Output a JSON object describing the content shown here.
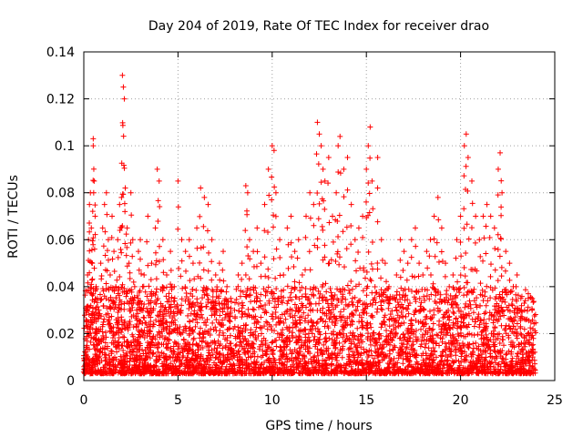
{
  "chart_data": {
    "type": "scatter",
    "title": "Day 204 of 2019, Rate Of TEC Index for receiver drao",
    "xlabel": "GPS time / hours",
    "ylabel": "ROTI / TECUs",
    "xlim": [
      0,
      25
    ],
    "ylim": [
      0,
      0.14
    ],
    "xticks": [
      0,
      5,
      10,
      15,
      20,
      25
    ],
    "yticks": [
      0,
      0.02,
      0.04,
      0.06,
      0.08,
      0.1,
      0.12,
      0.14
    ],
    "xtick_labels": [
      "0",
      "5",
      "10",
      "15",
      "20",
      "25"
    ],
    "ytick_labels": [
      "0",
      "0.02",
      "0.04",
      "0.06",
      "0.08",
      "0.1",
      "0.12",
      "0.14"
    ],
    "grid": true,
    "marker": "+",
    "color": "#ff0000",
    "series": [
      {
        "points": [
          [
            0.05,
            0.005
          ],
          [
            0.1,
            0.012
          ],
          [
            0.15,
            0.03
          ],
          [
            0.2,
            0.045
          ],
          [
            0.25,
            0.06
          ],
          [
            0.3,
            0.075
          ],
          [
            0.35,
            0.08
          ],
          [
            0.4,
            0.065
          ],
          [
            0.45,
            0.05
          ],
          [
            0.5,
            0.1
          ],
          [
            0.5,
            0.103
          ],
          [
            0.55,
            0.085
          ],
          [
            0.6,
            0.07
          ],
          [
            0.65,
            0.04
          ],
          [
            0.7,
            0.02
          ],
          [
            0.8,
            0.03
          ],
          [
            0.9,
            0.05
          ],
          [
            1.0,
            0.065
          ],
          [
            1.1,
            0.075
          ],
          [
            1.2,
            0.08
          ],
          [
            1.3,
            0.06
          ],
          [
            1.4,
            0.045
          ],
          [
            1.5,
            0.07
          ],
          [
            1.6,
            0.055
          ],
          [
            1.7,
            0.04
          ],
          [
            1.8,
            0.06
          ],
          [
            1.9,
            0.075
          ],
          [
            2.0,
            0.078
          ],
          [
            2.05,
            0.13
          ],
          [
            2.1,
            0.125
          ],
          [
            2.15,
            0.12
          ],
          [
            2.2,
            0.082
          ],
          [
            2.3,
            0.065
          ],
          [
            2.4,
            0.05
          ],
          [
            2.5,
            0.08
          ],
          [
            2.6,
            0.06
          ],
          [
            2.7,
            0.04
          ],
          [
            2.8,
            0.03
          ],
          [
            2.9,
            0.055
          ],
          [
            3.0,
            0.06
          ],
          [
            3.2,
            0.045
          ],
          [
            3.4,
            0.07
          ],
          [
            3.6,
            0.05
          ],
          [
            3.8,
            0.065
          ],
          [
            3.9,
            0.09
          ],
          [
            4.0,
            0.085
          ],
          [
            4.2,
            0.06
          ],
          [
            4.4,
            0.045
          ],
          [
            4.6,
            0.055
          ],
          [
            4.8,
            0.04
          ],
          [
            5.0,
            0.085
          ],
          [
            5.2,
            0.06
          ],
          [
            5.4,
            0.055
          ],
          [
            5.6,
            0.06
          ],
          [
            5.8,
            0.05
          ],
          [
            6.0,
            0.065
          ],
          [
            6.2,
            0.082
          ],
          [
            6.4,
            0.078
          ],
          [
            6.6,
            0.075
          ],
          [
            6.8,
            0.06
          ],
          [
            7.0,
            0.045
          ],
          [
            7.2,
            0.05
          ],
          [
            7.4,
            0.055
          ],
          [
            7.6,
            0.04
          ],
          [
            7.8,
            0.035
          ],
          [
            8.0,
            0.03
          ],
          [
            8.2,
            0.045
          ],
          [
            8.4,
            0.05
          ],
          [
            8.6,
            0.083
          ],
          [
            8.7,
            0.08
          ],
          [
            8.8,
            0.06
          ],
          [
            9.0,
            0.055
          ],
          [
            9.2,
            0.065
          ],
          [
            9.4,
            0.05
          ],
          [
            9.6,
            0.075
          ],
          [
            9.8,
            0.09
          ],
          [
            10.0,
            0.1
          ],
          [
            10.1,
            0.098
          ],
          [
            10.2,
            0.08
          ],
          [
            10.4,
            0.06
          ],
          [
            10.6,
            0.045
          ],
          [
            10.8,
            0.065
          ],
          [
            11.0,
            0.07
          ],
          [
            11.2,
            0.055
          ],
          [
            11.4,
            0.06
          ],
          [
            11.6,
            0.045
          ],
          [
            11.8,
            0.07
          ],
          [
            12.0,
            0.08
          ],
          [
            12.2,
            0.075
          ],
          [
            12.4,
            0.11
          ],
          [
            12.5,
            0.105
          ],
          [
            12.6,
            0.1
          ],
          [
            12.7,
            0.09
          ],
          [
            12.8,
            0.085
          ],
          [
            13.0,
            0.095
          ],
          [
            13.2,
            0.07
          ],
          [
            13.4,
            0.08
          ],
          [
            13.5,
            0.1
          ],
          [
            13.6,
            0.104
          ],
          [
            13.8,
            0.09
          ],
          [
            14.0,
            0.095
          ],
          [
            14.2,
            0.075
          ],
          [
            14.4,
            0.06
          ],
          [
            14.6,
            0.065
          ],
          [
            14.8,
            0.07
          ],
          [
            15.0,
            0.09
          ],
          [
            15.1,
            0.1
          ],
          [
            15.2,
            0.108
          ],
          [
            15.3,
            0.085
          ],
          [
            15.6,
            0.095
          ],
          [
            15.8,
            0.06
          ],
          [
            16.0,
            0.05
          ],
          [
            16.2,
            0.04
          ],
          [
            16.4,
            0.035
          ],
          [
            16.6,
            0.045
          ],
          [
            16.8,
            0.06
          ],
          [
            17.0,
            0.055
          ],
          [
            17.2,
            0.05
          ],
          [
            17.4,
            0.06
          ],
          [
            17.6,
            0.065
          ],
          [
            17.8,
            0.05
          ],
          [
            18.0,
            0.045
          ],
          [
            18.2,
            0.055
          ],
          [
            18.4,
            0.06
          ],
          [
            18.6,
            0.07
          ],
          [
            18.8,
            0.078
          ],
          [
            19.0,
            0.065
          ],
          [
            19.2,
            0.05
          ],
          [
            19.4,
            0.04
          ],
          [
            19.6,
            0.045
          ],
          [
            19.8,
            0.06
          ],
          [
            20.0,
            0.07
          ],
          [
            20.2,
            0.1
          ],
          [
            20.3,
            0.105
          ],
          [
            20.4,
            0.095
          ],
          [
            20.6,
            0.085
          ],
          [
            20.8,
            0.07
          ],
          [
            21.0,
            0.06
          ],
          [
            21.2,
            0.07
          ],
          [
            21.4,
            0.075
          ],
          [
            21.6,
            0.07
          ],
          [
            21.8,
            0.065
          ],
          [
            22.0,
            0.09
          ],
          [
            22.1,
            0.097
          ],
          [
            22.2,
            0.08
          ],
          [
            22.4,
            0.055
          ],
          [
            22.6,
            0.05
          ],
          [
            22.8,
            0.04
          ],
          [
            23.0,
            0.045
          ],
          [
            23.2,
            0.035
          ],
          [
            23.4,
            0.03
          ],
          [
            23.6,
            0.035
          ],
          [
            23.8,
            0.03
          ]
        ],
        "baseline_hours": [
          0,
          24
        ],
        "baseline_range": [
          0.003,
          0.04
        ]
      }
    ]
  }
}
